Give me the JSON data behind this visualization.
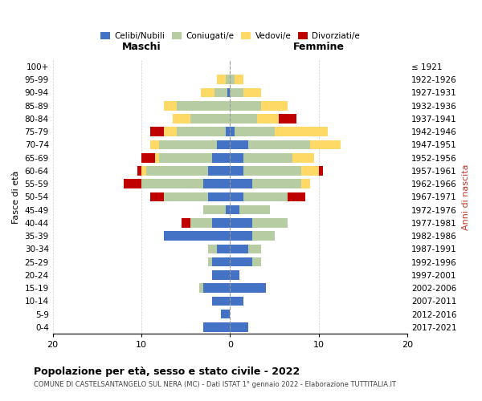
{
  "age_groups": [
    "0-4",
    "5-9",
    "10-14",
    "15-19",
    "20-24",
    "25-29",
    "30-34",
    "35-39",
    "40-44",
    "45-49",
    "50-54",
    "55-59",
    "60-64",
    "65-69",
    "70-74",
    "75-79",
    "80-84",
    "85-89",
    "90-94",
    "95-99",
    "100+"
  ],
  "birth_years": [
    "2017-2021",
    "2012-2016",
    "2007-2011",
    "2002-2006",
    "1997-2001",
    "1992-1996",
    "1987-1991",
    "1982-1986",
    "1977-1981",
    "1972-1976",
    "1967-1971",
    "1962-1966",
    "1957-1961",
    "1952-1956",
    "1947-1951",
    "1942-1946",
    "1937-1941",
    "1932-1936",
    "1927-1931",
    "1922-1926",
    "≤ 1921"
  ],
  "male": {
    "celibi": [
      3.0,
      1.0,
      2.0,
      3.0,
      2.0,
      2.0,
      1.5,
      7.5,
      2.0,
      0.5,
      2.5,
      3.0,
      2.5,
      2.0,
      1.5,
      0.5,
      0,
      0,
      0.3,
      0,
      0
    ],
    "coniugati": [
      0,
      0,
      0,
      0.5,
      0,
      0.5,
      1.0,
      0,
      2.5,
      2.5,
      5.0,
      7.0,
      7.0,
      6.0,
      6.5,
      5.5,
      4.5,
      6.0,
      1.5,
      0.5,
      0
    ],
    "vedovi": [
      0,
      0,
      0,
      0,
      0,
      0,
      0,
      0,
      0,
      0,
      0,
      0,
      0.5,
      0.5,
      1.0,
      1.5,
      2.0,
      1.5,
      1.5,
      1.0,
      0
    ],
    "divorziati": [
      0,
      0,
      0,
      0,
      0,
      0,
      0,
      0,
      1.0,
      0,
      1.5,
      2.0,
      0.5,
      1.5,
      0,
      1.5,
      0,
      0,
      0,
      0,
      0
    ]
  },
  "female": {
    "celibi": [
      2.0,
      0,
      1.5,
      4.0,
      1.0,
      2.5,
      2.0,
      2.5,
      2.5,
      1.0,
      1.5,
      2.5,
      1.5,
      1.5,
      2.0,
      0.5,
      0,
      0,
      0,
      0,
      0
    ],
    "coniugati": [
      0,
      0,
      0,
      0,
      0,
      1.0,
      1.5,
      2.5,
      4.0,
      3.5,
      5.0,
      5.5,
      6.5,
      5.5,
      7.0,
      4.5,
      3.0,
      3.5,
      1.5,
      0.5,
      0
    ],
    "vedovi": [
      0,
      0,
      0,
      0,
      0,
      0,
      0,
      0,
      0,
      0,
      0,
      1.0,
      2.0,
      2.5,
      3.5,
      6.0,
      2.5,
      3.0,
      2.0,
      1.0,
      0
    ],
    "divorziati": [
      0,
      0,
      0,
      0,
      0,
      0,
      0,
      0,
      0,
      0,
      2.0,
      0,
      0.5,
      0,
      0,
      0,
      2.0,
      0,
      0,
      0,
      0
    ]
  },
  "color_celibi": "#4472c4",
  "color_coniugati": "#b8cca4",
  "color_vedovi": "#ffd966",
  "color_divorziati": "#c00000",
  "xlim": 20,
  "title": "Popolazione per età, sesso e stato civile - 2022",
  "subtitle": "COMUNE DI CASTELSANTANGELO SUL NERA (MC) - Dati ISTAT 1° gennaio 2022 - Elaborazione TUTTITALIA.IT",
  "ylabel_left": "Fasce di età",
  "ylabel_right": "Anni di nascita",
  "xlabel_left": "Maschi",
  "xlabel_right": "Femmine",
  "bg_color": "#ffffff",
  "grid_color": "#cccccc"
}
